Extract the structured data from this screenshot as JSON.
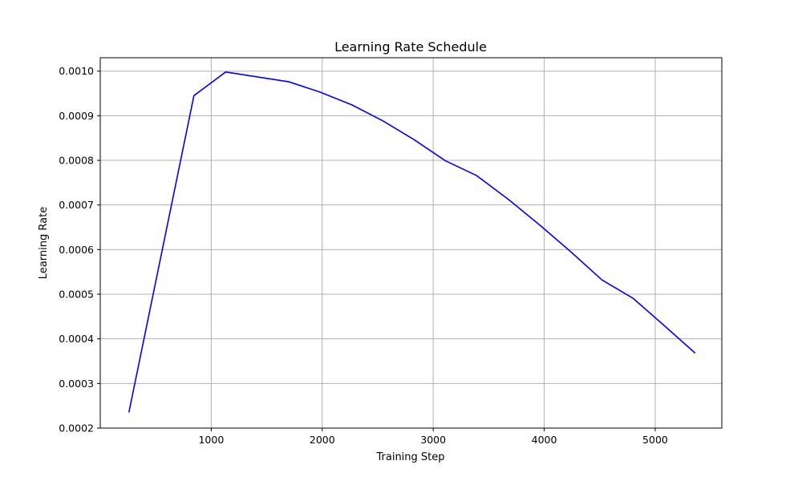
{
  "chart_data": {
    "type": "line",
    "title": "Learning Rate Schedule",
    "xlabel": "Training Step",
    "ylabel": "Learning Rate",
    "xlim": [
      0,
      5600
    ],
    "ylim": [
      0.0002,
      0.00103
    ],
    "grid": true,
    "x_ticks": [
      1000,
      2000,
      3000,
      4000,
      5000
    ],
    "x_tick_labels": [
      "1000",
      "2000",
      "3000",
      "4000",
      "5000"
    ],
    "y_ticks": [
      0.0002,
      0.0003,
      0.0004,
      0.0005,
      0.0006,
      0.0007,
      0.0008,
      0.0009,
      0.001
    ],
    "y_tick_labels": [
      "0.0002",
      "0.0003",
      "0.0004",
      "0.0005",
      "0.0006",
      "0.0007",
      "0.0008",
      "0.0009",
      "0.0010"
    ],
    "series": [
      {
        "color": "#0000ff",
        "x": [
          258,
          844,
          1130,
          1700,
          1980,
          2270,
          2550,
          2830,
          3110,
          3390,
          3680,
          3960,
          4240,
          4520,
          4800,
          5080,
          5360
        ],
        "y": [
          0.000235,
          0.000945,
          0.000998,
          0.000976,
          0.000953,
          0.000924,
          0.000888,
          0.000846,
          0.000799,
          0.000766,
          0.000712,
          0.000655,
          0.000595,
          0.000532,
          0.000491,
          0.00043,
          0.000368
        ]
      }
    ]
  }
}
